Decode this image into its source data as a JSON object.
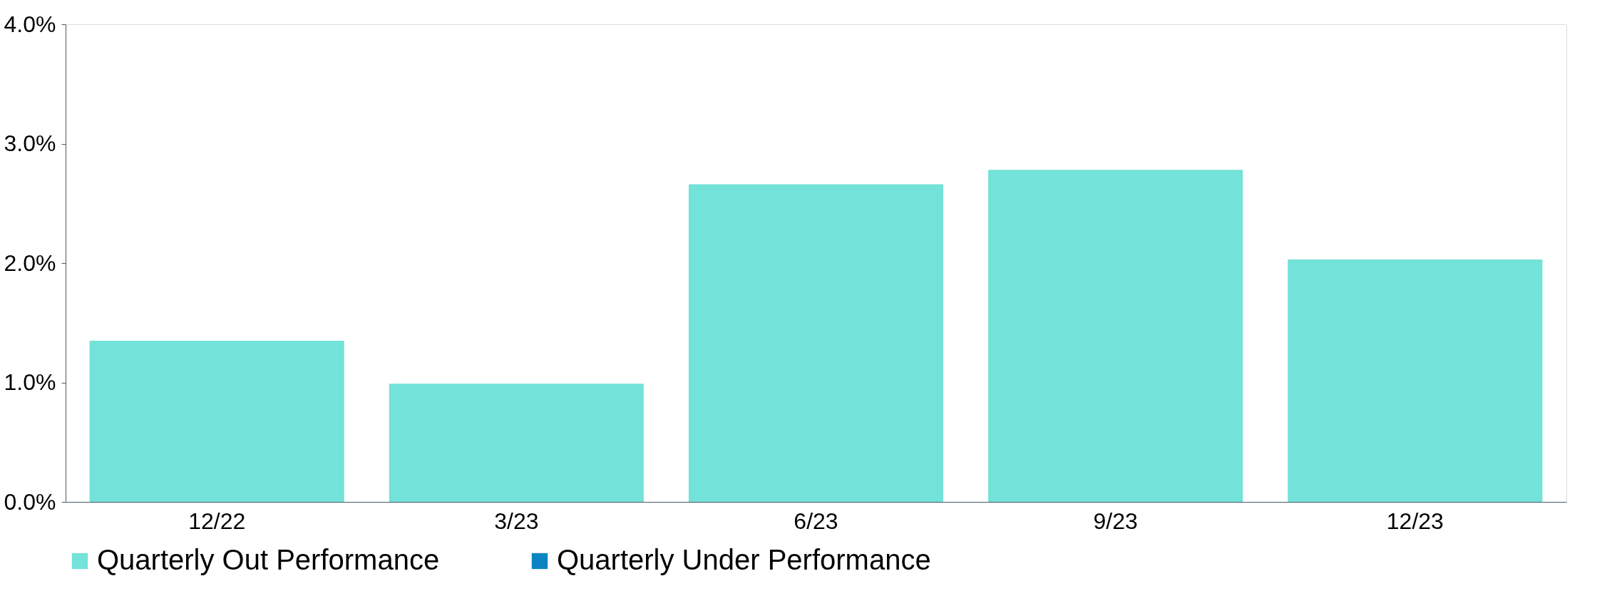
{
  "chart_data": {
    "type": "bar",
    "categories": [
      "12/22",
      "3/23",
      "6/23",
      "9/23",
      "12/23"
    ],
    "series": [
      {
        "name": "Quarterly Out Performance",
        "color": "#73e2d8",
        "values": [
          1.35,
          0.99,
          2.66,
          2.78,
          2.03
        ]
      },
      {
        "name": "Quarterly Under Performance",
        "color": "#0a85c2",
        "values": [
          null,
          null,
          null,
          null,
          null
        ]
      }
    ],
    "ylim": [
      0,
      4
    ],
    "yticks": [
      {
        "value": 0,
        "label": "0.0%"
      },
      {
        "value": 1,
        "label": "1.0%"
      },
      {
        "value": 2,
        "label": "2.0%"
      },
      {
        "value": 3,
        "label": "3.0%"
      },
      {
        "value": 4,
        "label": "4.0%"
      }
    ],
    "grid": false,
    "legend": "bottom"
  }
}
